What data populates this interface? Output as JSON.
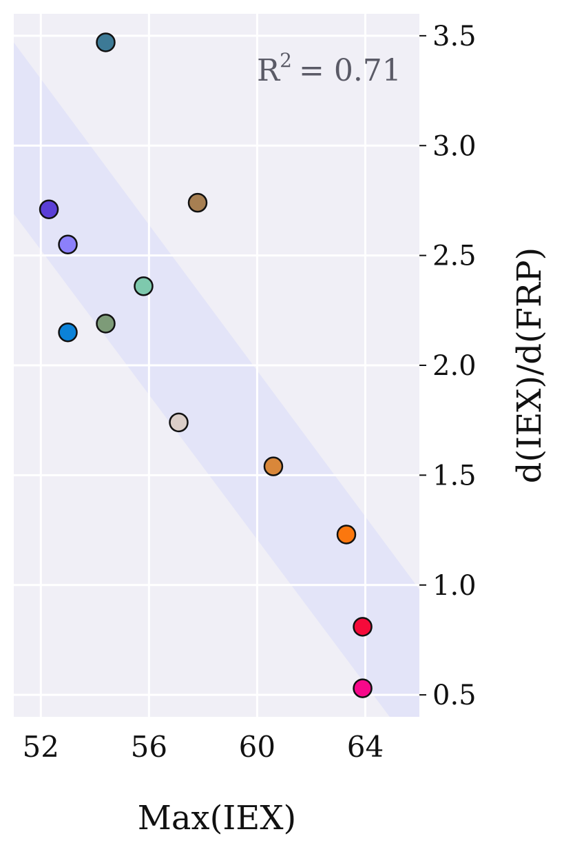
{
  "chart_data": {
    "type": "scatter",
    "xlabel": "Max(IEX)",
    "ylabel": "d(IEX)/d(FRP)",
    "xlim": [
      51,
      66
    ],
    "ylim": [
      0.4,
      3.6
    ],
    "x_ticks": [
      52,
      56,
      60,
      64
    ],
    "y_ticks": [
      0.5,
      1.0,
      1.5,
      2.0,
      2.5,
      3.0,
      3.5
    ],
    "x_tick_labels": [
      "52",
      "56",
      "60",
      "64"
    ],
    "y_tick_labels": [
      "0.5",
      "1.0",
      "1.5",
      "2.0",
      "2.5",
      "3.0",
      "3.5"
    ],
    "grid": true,
    "annotation": {
      "label": "R",
      "exponent": "2",
      "value": "= 0.71"
    },
    "confidence_band": {
      "color": "#e3e4f8",
      "upper": [
        [
          51,
          3.47
        ],
        [
          66,
          0.98
        ]
      ],
      "lower": [
        [
          51,
          2.69
        ],
        [
          64.9,
          0.4
        ]
      ]
    },
    "points": [
      {
        "x": 54.4,
        "y": 3.47,
        "color": "#3d7a96"
      },
      {
        "x": 52.3,
        "y": 2.71,
        "color": "#5b3fd6"
      },
      {
        "x": 53.0,
        "y": 2.55,
        "color": "#8c80fa"
      },
      {
        "x": 57.8,
        "y": 2.74,
        "color": "#a77f52"
      },
      {
        "x": 55.8,
        "y": 2.36,
        "color": "#7ec9ad"
      },
      {
        "x": 54.4,
        "y": 2.19,
        "color": "#7d9b78"
      },
      {
        "x": 53.0,
        "y": 2.15,
        "color": "#0b82d8"
      },
      {
        "x": 57.1,
        "y": 1.74,
        "color": "#dbcec8"
      },
      {
        "x": 60.6,
        "y": 1.54,
        "color": "#d9873a"
      },
      {
        "x": 63.3,
        "y": 1.23,
        "color": "#fb770e"
      },
      {
        "x": 63.9,
        "y": 0.81,
        "color": "#f50a3a"
      },
      {
        "x": 63.9,
        "y": 0.53,
        "color": "#f7088a"
      }
    ],
    "colors": {
      "plot_background": "#f0eff6",
      "grid": "#ffffff",
      "marker_edge": "#111111"
    }
  }
}
